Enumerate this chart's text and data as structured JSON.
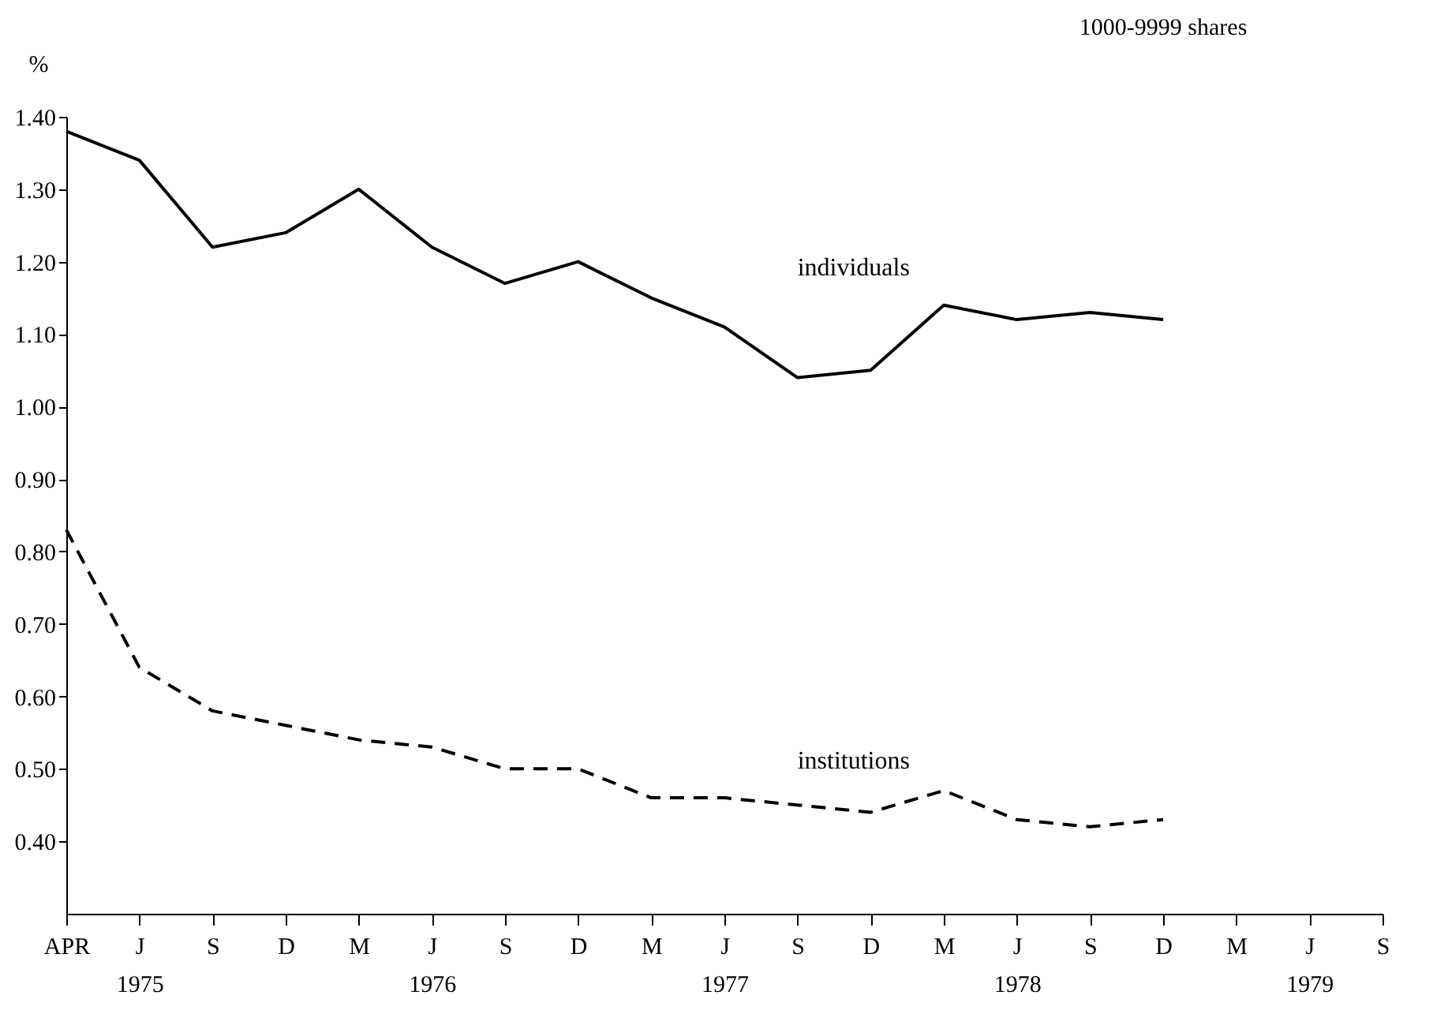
{
  "chart_data": {
    "type": "line",
    "title": "1000-9999 shares",
    "ylabel": "%",
    "categories": [
      "APR",
      "J\n1975",
      "S",
      "D",
      "M",
      "J\n1976",
      "S",
      "D",
      "M",
      "J\n1977",
      "S",
      "D",
      "M",
      "J\n1978",
      "S",
      "D",
      "M",
      "J\n1979",
      "S"
    ],
    "series": [
      {
        "name": "individuals",
        "color": "#000000",
        "line_style": "solid",
        "values": [
          1.38,
          1.34,
          1.22,
          1.24,
          1.3,
          1.22,
          1.17,
          1.2,
          1.15,
          1.11,
          1.04,
          1.05,
          1.14,
          1.12,
          1.13,
          1.12,
          null,
          null,
          null
        ]
      },
      {
        "name": "institutions",
        "color": "#000000",
        "line_style": "dashed",
        "values": [
          0.83,
          0.64,
          0.58,
          0.56,
          0.54,
          0.53,
          0.5,
          0.5,
          0.46,
          0.46,
          0.45,
          0.44,
          0.47,
          0.43,
          0.42,
          0.43,
          null,
          null,
          null
        ]
      }
    ],
    "ylim": [
      0.3,
      1.4
    ],
    "yticks": [
      {
        "value": 0.4,
        "label": "0.40"
      },
      {
        "value": 0.5,
        "label": "0.50"
      },
      {
        "value": 0.6,
        "label": "0.60"
      },
      {
        "value": 0.7,
        "label": "0.70"
      },
      {
        "value": 0.8,
        "label": "0.80"
      },
      {
        "value": 0.9,
        "label": "0.90"
      },
      {
        "value": 1.0,
        "label": "1.00"
      },
      {
        "value": 1.1,
        "label": "1.10"
      },
      {
        "value": 1.2,
        "label": "1.20"
      },
      {
        "value": 1.3,
        "label": "1.30"
      },
      {
        "value": 1.4,
        "label": "1.40"
      }
    ],
    "grid": false,
    "marker": "none"
  }
}
